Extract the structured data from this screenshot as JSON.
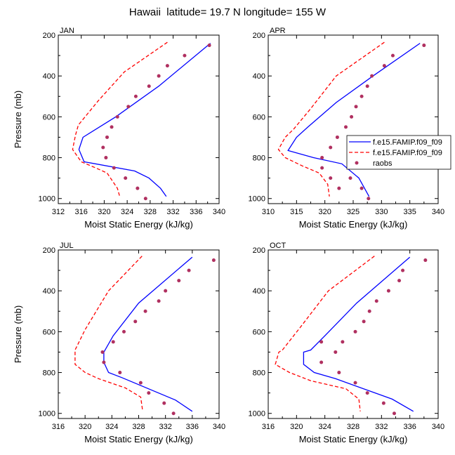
{
  "title": "Hawaii  latitude= 19.7 N longitude= 155 W",
  "colors": {
    "model1": "#0000ff",
    "model2": "#ff0000",
    "raobs": "#b03060"
  },
  "chart_data": [
    {
      "type": "line",
      "panel_label": "JAN",
      "xlabel": "Moist Static Energy (kJ/kg)",
      "ylabel": "Pressure (mb)",
      "xlim": [
        312,
        340
      ],
      "ylim": [
        200,
        1025
      ],
      "y_reversed": true,
      "xticks": [
        312,
        316,
        320,
        324,
        328,
        332,
        336,
        340
      ],
      "yticks": [
        200,
        400,
        600,
        800,
        1000
      ],
      "series": [
        {
          "name": "f.e15.FAMIP.f09_f09",
          "style": "solid",
          "color": "#0000ff",
          "x": [
            338.5,
            329.5,
            322,
            316.3,
            315.6,
            316.5,
            325.3,
            327.8,
            329.8,
            330.8
          ],
          "y": [
            240,
            450,
            600,
            700,
            760,
            820,
            865,
            900,
            950,
            990
          ]
        },
        {
          "name": "f.e15.FAMIP.f09_f09",
          "style": "dashed",
          "color": "#ff0000",
          "x": [
            331,
            323.5,
            319,
            315.5,
            315,
            314.5,
            316,
            318.5,
            320.5,
            322.3,
            322.7
          ],
          "y": [
            235,
            380,
            520,
            640,
            690,
            760,
            820,
            850,
            875,
            950,
            990
          ]
        },
        {
          "name": "raobs",
          "style": "markers",
          "color": "#b03060",
          "x": [
            338.3,
            334,
            331,
            329.5,
            327.8,
            325.5,
            324.2,
            322.3,
            321.3,
            320.5,
            319.8,
            320.3,
            321.7,
            323.7,
            325.8,
            327.2
          ],
          "y": [
            250,
            300,
            350,
            400,
            450,
            500,
            550,
            600,
            650,
            700,
            750,
            800,
            850,
            900,
            950,
            1000
          ]
        }
      ]
    },
    {
      "type": "line",
      "panel_label": "APR",
      "xlabel": "Moist Static Energy (kJ/kg)",
      "ylabel": "",
      "xlim": [
        310,
        340
      ],
      "ylim": [
        200,
        1025
      ],
      "y_reversed": true,
      "xticks": [
        310,
        315,
        320,
        325,
        330,
        335,
        340
      ],
      "yticks": [
        200,
        400,
        600,
        800,
        1000
      ],
      "legend": {
        "position": "right",
        "entries": [
          "f.e15.FAMIP.f09_f09",
          "f.e15.FAMIP.f09_f09",
          "raobs"
        ]
      },
      "series": [
        {
          "name": "f.e15.FAMIP.f09_f09",
          "style": "solid",
          "color": "#0000ff",
          "x": [
            336.8,
            328.5,
            322,
            317,
            315,
            313.5,
            318,
            323,
            326,
            327.8
          ],
          "y": [
            240,
            400,
            530,
            650,
            700,
            765,
            800,
            830,
            900,
            990
          ]
        },
        {
          "name": "f.e15.FAMIP.f09_f09",
          "style": "dashed",
          "color": "#ff0000",
          "x": [
            330.5,
            322,
            317.5,
            314.5,
            313,
            311.8,
            313,
            316,
            319,
            320.5,
            320.8
          ],
          "y": [
            235,
            400,
            560,
            660,
            700,
            760,
            800,
            840,
            875,
            930,
            990
          ]
        },
        {
          "name": "raobs",
          "style": "markers",
          "color": "#b03060",
          "x": [
            337.5,
            332,
            330.5,
            328.3,
            327.5,
            326.5,
            325.5,
            324.7,
            323.7,
            322.2,
            321,
            319.5,
            319.5,
            321,
            322.5,
            324.5,
            326.5,
            327.7
          ],
          "y": [
            250,
            300,
            350,
            400,
            450,
            500,
            550,
            600,
            650,
            700,
            750,
            800,
            850,
            900,
            950,
            900,
            950,
            1000
          ]
        }
      ]
    },
    {
      "type": "line",
      "panel_label": "JUL",
      "xlabel": "Moist Static Energy (kJ/kg)",
      "ylabel": "Pressure (mb)",
      "xlim": [
        316,
        340
      ],
      "ylim": [
        200,
        1025
      ],
      "y_reversed": true,
      "xticks": [
        316,
        320,
        324,
        328,
        332,
        336,
        340
      ],
      "yticks": [
        200,
        400,
        600,
        800,
        1000
      ],
      "series": [
        {
          "name": "f.e15.FAMIP.f09_f09",
          "style": "solid",
          "color": "#0000ff",
          "x": [
            336,
            328,
            324.2,
            322.8,
            322.8,
            323.5,
            325.5,
            333.5,
            336
          ],
          "y": [
            235,
            460,
            620,
            700,
            750,
            800,
            825,
            935,
            990
          ]
        },
        {
          "name": "f.e15.FAMIP.f09_f09",
          "style": "dashed",
          "color": "#ff0000",
          "x": [
            328.5,
            323.5,
            320,
            318.5,
            318.5,
            320,
            322,
            326,
            328.3,
            328.6
          ],
          "y": [
            230,
            400,
            590,
            690,
            760,
            800,
            830,
            875,
            920,
            990
          ]
        },
        {
          "name": "raobs",
          "style": "markers",
          "color": "#b03060",
          "x": [
            339.2,
            335.5,
            334,
            332,
            331,
            329,
            327.5,
            325.8,
            324.2,
            322.6,
            322.8,
            325.2,
            328.3,
            329.5,
            331.8,
            333.2
          ],
          "y": [
            250,
            300,
            350,
            400,
            450,
            500,
            550,
            600,
            650,
            700,
            750,
            800,
            850,
            900,
            950,
            1000
          ]
        }
      ]
    },
    {
      "type": "line",
      "panel_label": "OCT",
      "xlabel": "Moist Static Energy (kJ/kg)",
      "ylabel": "",
      "xlim": [
        316,
        340
      ],
      "ylim": [
        200,
        1025
      ],
      "y_reversed": true,
      "xticks": [
        316,
        320,
        324,
        328,
        332,
        336,
        340
      ],
      "yticks": [
        200,
        400,
        600,
        800,
        1000
      ],
      "series": [
        {
          "name": "f.e15.FAMIP.f09_f09",
          "style": "solid",
          "color": "#0000ff",
          "x": [
            336,
            328.5,
            324,
            322,
            321,
            321,
            322.5,
            325.5,
            333.5,
            336.5
          ],
          "y": [
            235,
            460,
            620,
            690,
            700,
            760,
            800,
            830,
            930,
            990
          ]
        },
        {
          "name": "f.e15.FAMIP.f09_f09",
          "style": "dashed",
          "color": "#ff0000",
          "x": [
            331,
            324.5,
            320.5,
            318,
            317.5,
            317,
            319,
            322,
            327,
            328.8,
            329
          ],
          "y": [
            230,
            400,
            580,
            690,
            700,
            760,
            800,
            840,
            880,
            930,
            990
          ]
        },
        {
          "name": "raobs",
          "style": "markers",
          "color": "#b03060",
          "x": [
            338.2,
            335,
            334.5,
            333,
            331.3,
            330.3,
            329.5,
            328.3,
            326.5,
            325.5,
            323.5,
            323.5,
            326,
            328.3,
            330,
            332.3,
            333.8
          ],
          "y": [
            250,
            300,
            350,
            400,
            450,
            500,
            550,
            600,
            650,
            700,
            650,
            750,
            800,
            850,
            900,
            950,
            1000
          ]
        }
      ]
    }
  ]
}
